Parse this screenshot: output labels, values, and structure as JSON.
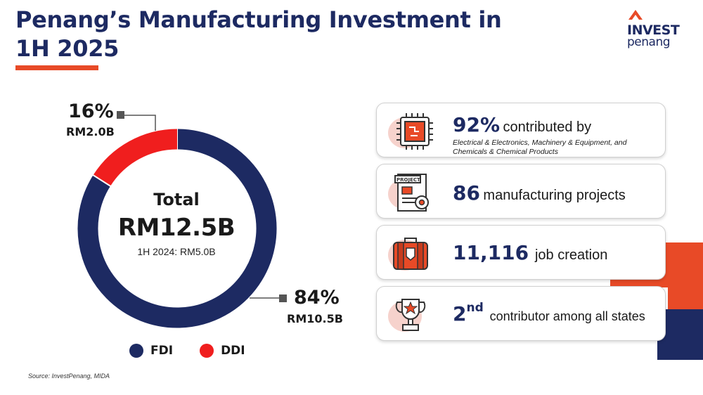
{
  "header": {
    "title": "Penang’s Manufacturing Investment in 1H 2025"
  },
  "logo": {
    "line1": "INVEST",
    "line2": "penang"
  },
  "chart_data": {
    "type": "donut",
    "series": [
      {
        "name": "FDI",
        "percent": 84,
        "percent_label": "84%",
        "value_label": "RM10.5B",
        "value": 10.5,
        "color": "#1d2a62"
      },
      {
        "name": "DDI",
        "percent": 16,
        "percent_label": "16%",
        "value_label": "RM2.0B",
        "value": 2.0,
        "color": "#f01e1e"
      }
    ],
    "center": {
      "label": "Total",
      "value": "RM12.5B",
      "comparison": "1H 2024: RM5.0B"
    },
    "legend_placement": "bottom"
  },
  "highlights": [
    {
      "icon": "chip-icon",
      "big": "92%",
      "text": "contributed by",
      "note": "Electrical & Electronics, Machinery & Equipment, and Chemicals & Chemical Products"
    },
    {
      "icon": "project-document-icon",
      "big": "86",
      "text": "manufacturing projects"
    },
    {
      "icon": "briefcase-icon",
      "big": "11,116",
      "text": "job creation"
    },
    {
      "icon": "trophy-icon",
      "big": "2",
      "sup": "nd",
      "text": "contributor among all states"
    }
  ],
  "source": "Source: InvestPenang, MIDA",
  "colors": {
    "navy": "#1d2a62",
    "red": "#f01e1e",
    "accent": "#e84a27",
    "icon_bg": "#f6d2cc"
  }
}
